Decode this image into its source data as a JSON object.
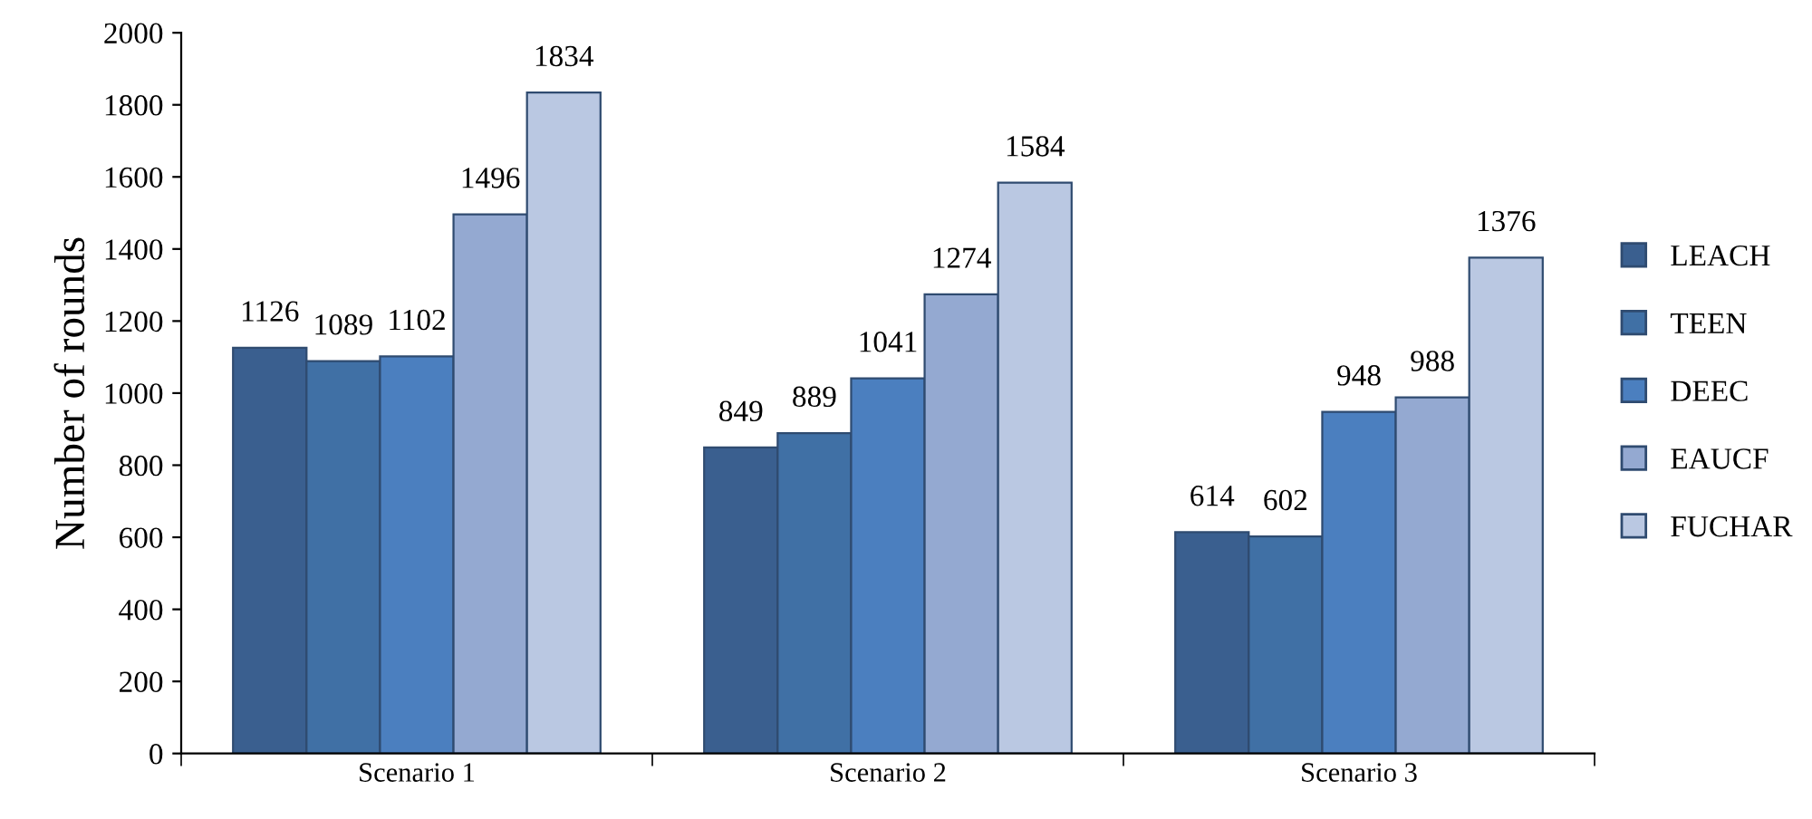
{
  "chart_data": {
    "type": "bar",
    "ylabel": "Number of rounds",
    "categories": [
      "Scenario 1",
      "Scenario 2",
      "Scenario 3"
    ],
    "series": [
      {
        "name": "LEACH",
        "color": "#3a5f8f",
        "values": [
          1126,
          849,
          614
        ]
      },
      {
        "name": "TEEN",
        "color": "#4070a5",
        "values": [
          1089,
          889,
          602
        ]
      },
      {
        "name": "DEEC",
        "color": "#4b7fbf",
        "values": [
          1102,
          1041,
          948
        ]
      },
      {
        "name": "EAUCF",
        "color": "#94a9d1",
        "values": [
          1496,
          1274,
          988
        ]
      },
      {
        "name": "FUCHAR",
        "color": "#bac8e2",
        "values": [
          1834,
          1584,
          1376
        ]
      }
    ],
    "ylim": [
      0,
      2000
    ],
    "yticks": [
      0,
      200,
      400,
      600,
      800,
      1000,
      1200,
      1400,
      1600,
      1800,
      2000
    ],
    "data_labels": true,
    "legend": "right",
    "grid": false
  }
}
